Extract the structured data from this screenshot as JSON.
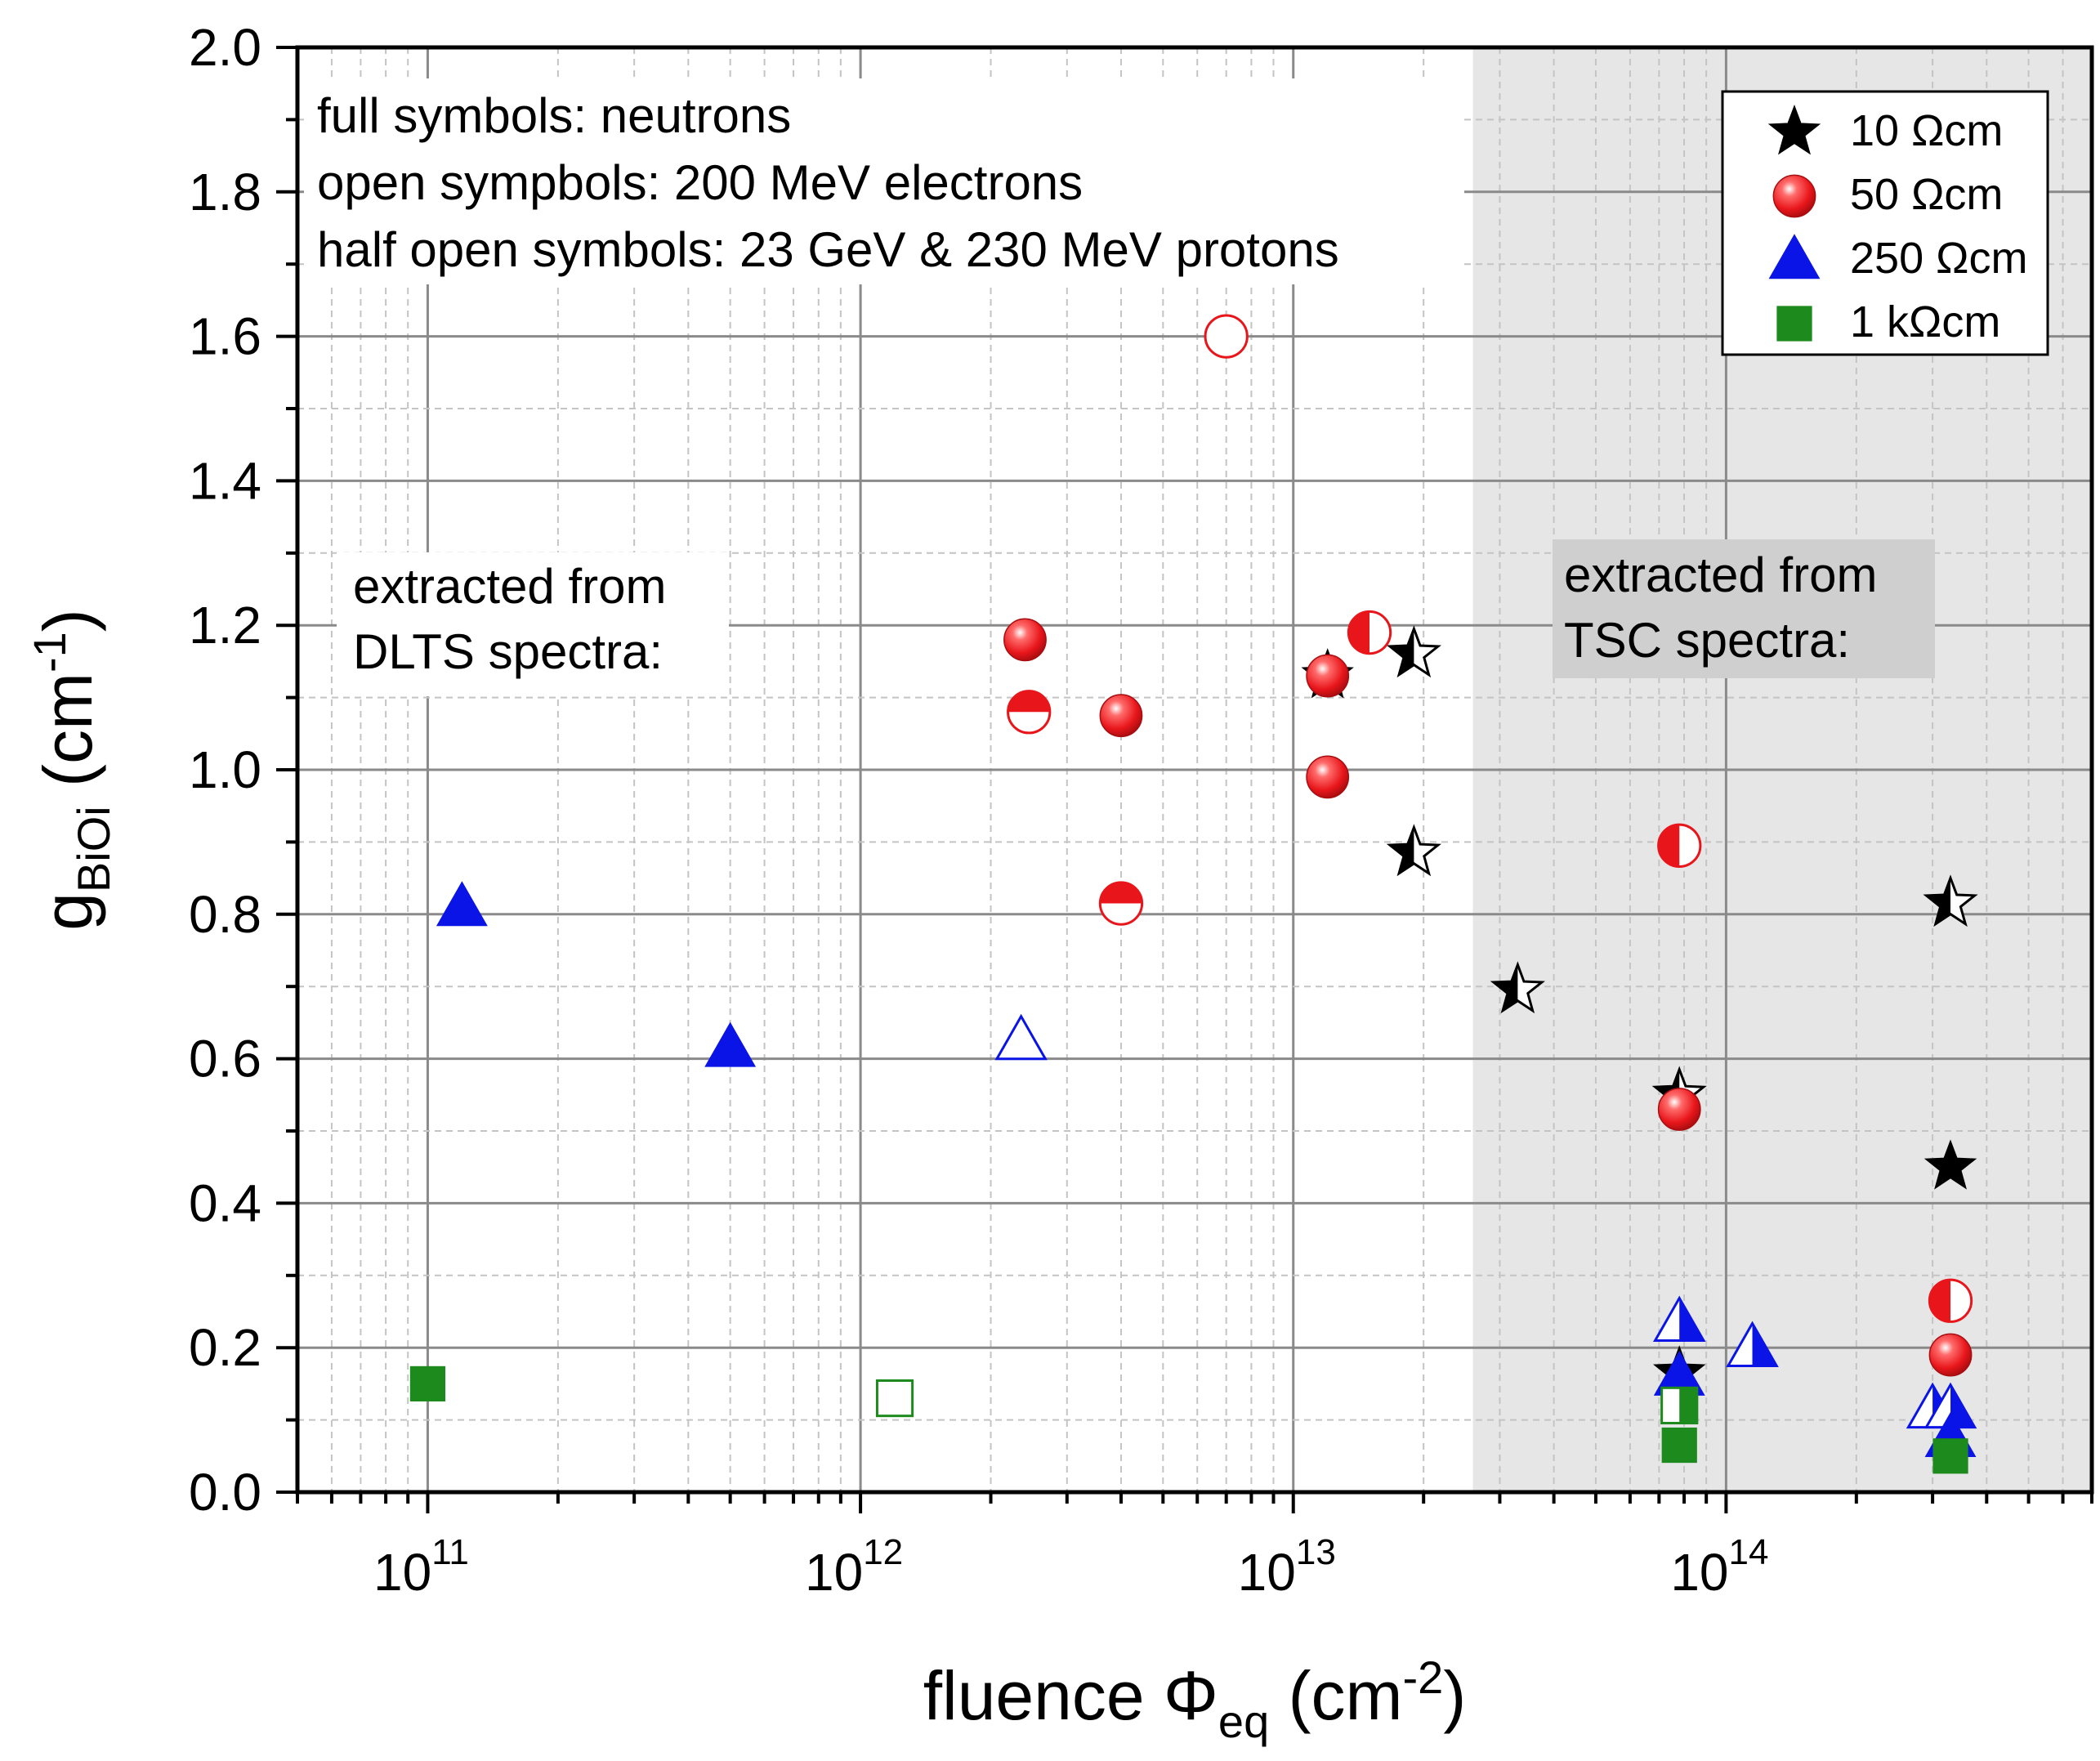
{
  "chart_data": {
    "type": "scatter",
    "x_scale": "log",
    "xlim": [
      50000000000.0,
      700000000000000.0
    ],
    "ylim": [
      0,
      2.0
    ],
    "x_ticks": [
      {
        "value": 100000000000.0,
        "base": "10",
        "exp": "11"
      },
      {
        "value": 1000000000000.0,
        "base": "10",
        "exp": "12"
      },
      {
        "value": 10000000000000.0,
        "base": "10",
        "exp": "13"
      },
      {
        "value": 100000000000000.0,
        "base": "10",
        "exp": "14"
      }
    ],
    "y_ticks": [
      "0.0",
      "0.2",
      "0.4",
      "0.6",
      "0.8",
      "1.0",
      "1.2",
      "1.4",
      "1.6",
      "1.8",
      "2.0"
    ],
    "xlabel": {
      "main": "fluence Φ",
      "sub": "eq",
      "unit_open": " (cm",
      "sup": "-2",
      "unit_close": ")"
    },
    "ylabel": {
      "main": "g",
      "sub": "BiOi",
      "unit_open": " (cm",
      "sup": "-1",
      "unit_close": ")"
    },
    "grid": true,
    "tsc_region_start": 26000000000000.0,
    "annotations": {
      "symbols_note": [
        "full symbols: neutrons",
        "open sympbols: 200 MeV electrons",
        "half open symbols: 23 GeV & 230 MeV protons"
      ],
      "dlts": [
        "extracted from",
        "DLTS spectra:"
      ],
      "tsc": [
        "extracted from",
        "TSC spectra:"
      ]
    },
    "legend_position": "top-right",
    "colors": {
      "black": "#000000",
      "red": "#e8161b",
      "blue": "#0a14e6",
      "green": "#1c8a1c",
      "shade": "#e6e6e6",
      "tsc_box": "#cfcfcf"
    },
    "series": [
      {
        "name": "10 Ωcm",
        "symbol": "star",
        "color": "#000000",
        "points": [
          {
            "x": 12000000000000.0,
            "y": 1.13,
            "fill": "full"
          },
          {
            "x": 19000000000000.0,
            "y": 1.16,
            "fill": "half"
          },
          {
            "x": 19000000000000.0,
            "y": 0.885,
            "fill": "half"
          },
          {
            "x": 33000000000000.0,
            "y": 0.695,
            "fill": "half"
          },
          {
            "x": 78000000000000.0,
            "y": 0.55,
            "fill": "half"
          },
          {
            "x": 78000000000000.0,
            "y": 0.165,
            "fill": "full"
          },
          {
            "x": 330000000000000.0,
            "y": 0.815,
            "fill": "half"
          },
          {
            "x": 330000000000000.0,
            "y": 0.45,
            "fill": "full"
          }
        ]
      },
      {
        "name": "50 Ωcm",
        "symbol": "circle",
        "color": "#e8161b",
        "points": [
          {
            "x": 2400000000000.0,
            "y": 1.18,
            "fill": "full"
          },
          {
            "x": 2450000000000.0,
            "y": 1.08,
            "fill": "half-bottom"
          },
          {
            "x": 4000000000000.0,
            "y": 1.075,
            "fill": "full"
          },
          {
            "x": 4000000000000.0,
            "y": 0.815,
            "fill": "half-bottom"
          },
          {
            "x": 7000000000000.0,
            "y": 1.6,
            "fill": "open"
          },
          {
            "x": 12000000000000.0,
            "y": 1.13,
            "fill": "full"
          },
          {
            "x": 12000000000000.0,
            "y": 0.99,
            "fill": "full"
          },
          {
            "x": 15000000000000.0,
            "y": 1.19,
            "fill": "half-right"
          },
          {
            "x": 78000000000000.0,
            "y": 0.895,
            "fill": "half-right"
          },
          {
            "x": 78000000000000.0,
            "y": 0.53,
            "fill": "full"
          },
          {
            "x": 330000000000000.0,
            "y": 0.265,
            "fill": "half-right"
          },
          {
            "x": 330000000000000.0,
            "y": 0.19,
            "fill": "full"
          }
        ]
      },
      {
        "name": "250 Ωcm",
        "symbol": "triangle",
        "color": "#0a14e6",
        "points": [
          {
            "x": 120000000000.0,
            "y": 0.81,
            "fill": "full"
          },
          {
            "x": 500000000000.0,
            "y": 0.615,
            "fill": "full"
          },
          {
            "x": 2350000000000.0,
            "y": 0.625,
            "fill": "open"
          },
          {
            "x": 78000000000000.0,
            "y": 0.235,
            "fill": "half"
          },
          {
            "x": 78000000000000.0,
            "y": 0.16,
            "fill": "full"
          },
          {
            "x": 115000000000000.0,
            "y": 0.2,
            "fill": "half"
          },
          {
            "x": 300000000000000.0,
            "y": 0.115,
            "fill": "half"
          },
          {
            "x": 330000000000000.0,
            "y": 0.115,
            "fill": "half"
          },
          {
            "x": 330000000000000.0,
            "y": 0.075,
            "fill": "full"
          }
        ]
      },
      {
        "name": "1 kΩcm",
        "symbol": "square",
        "color": "#1c8a1c",
        "points": [
          {
            "x": 100000000000.0,
            "y": 0.15,
            "fill": "full"
          },
          {
            "x": 1200000000000.0,
            "y": 0.13,
            "fill": "open"
          },
          {
            "x": 78000000000000.0,
            "y": 0.12,
            "fill": "half"
          },
          {
            "x": 78000000000000.0,
            "y": 0.065,
            "fill": "full"
          },
          {
            "x": 330000000000000.0,
            "y": 0.05,
            "fill": "full"
          }
        ]
      }
    ]
  }
}
